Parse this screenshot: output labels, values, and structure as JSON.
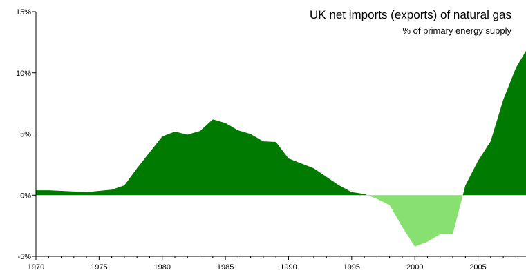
{
  "chart_data": {
    "type": "area",
    "title": "UK net imports (exports) of natural gas",
    "subtitle": "% of primary energy supply",
    "xlabel": "",
    "ylabel": "",
    "xlim": [
      1970,
      2008.8
    ],
    "ylim": [
      -5,
      15
    ],
    "y_ticks": [
      -5,
      0,
      5,
      10,
      15
    ],
    "y_tick_labels": [
      "-5%",
      "0%",
      "5%",
      "10%",
      "15%"
    ],
    "x_ticks": [
      1970,
      1975,
      1980,
      1985,
      1990,
      1995,
      2000,
      2005
    ],
    "x_tick_labels": [
      "1970",
      "1975",
      "1980",
      "1985",
      "1990",
      "1995",
      "2000",
      "2005"
    ],
    "grid": false,
    "legend": "none",
    "colors": {
      "positive": "#007a00",
      "negative": "#88e070"
    },
    "x": [
      1970,
      1971,
      1972,
      1973,
      1974,
      1975,
      1976,
      1977,
      1978,
      1979,
      1980,
      1981,
      1982,
      1983,
      1984,
      1985,
      1986,
      1987,
      1988,
      1989,
      1990,
      1991,
      1992,
      1993,
      1994,
      1995,
      1996,
      1997,
      1998,
      1999,
      2000,
      2001,
      2002,
      2003,
      2004,
      2005,
      2006,
      2007,
      2008,
      2008.8
    ],
    "values": [
      0.4,
      0.4,
      0.35,
      0.3,
      0.25,
      0.35,
      0.45,
      0.8,
      2.2,
      3.5,
      4.8,
      5.2,
      4.95,
      5.25,
      6.2,
      5.9,
      5.3,
      5.0,
      4.4,
      4.35,
      3.0,
      2.6,
      2.2,
      1.5,
      0.8,
      0.25,
      0.1,
      -0.3,
      -0.8,
      -2.6,
      -4.2,
      -3.8,
      -3.2,
      -3.2,
      0.8,
      2.8,
      4.4,
      7.8,
      10.4,
      11.8
    ]
  }
}
